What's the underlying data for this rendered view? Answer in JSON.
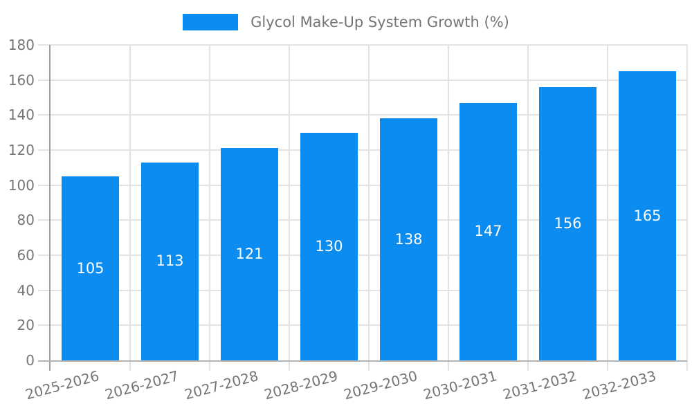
{
  "chart": {
    "legend_label": "Glycol Make-Up System Growth (%)",
    "colors": {
      "bar": "#0a8cf0",
      "grid": "#e3e3e3",
      "axis": "#9e9e9e",
      "axis_bottom": "#b3b3b3",
      "tick_text": "#757575",
      "value_text": "#ffffff",
      "background": "#ffffff"
    }
  },
  "chart_data": {
    "type": "bar",
    "title": "Glycol Make-Up System Growth (%)",
    "categories": [
      "2025-2026",
      "2026-2027",
      "2027-2028",
      "2028-2029",
      "2029-2030",
      "2030-2031",
      "2031-2032",
      "2032-2033"
    ],
    "values": [
      105,
      113,
      121,
      130,
      138,
      147,
      156,
      165
    ],
    "xlabel": "",
    "ylabel": "",
    "ylim": [
      0,
      180
    ],
    "y_ticks": [
      0,
      20,
      40,
      60,
      80,
      100,
      120,
      140,
      160,
      180
    ],
    "grid": true,
    "legend_position": "top-center",
    "bar_label_position": "inside-center",
    "x_tick_rotation_deg": -15
  }
}
